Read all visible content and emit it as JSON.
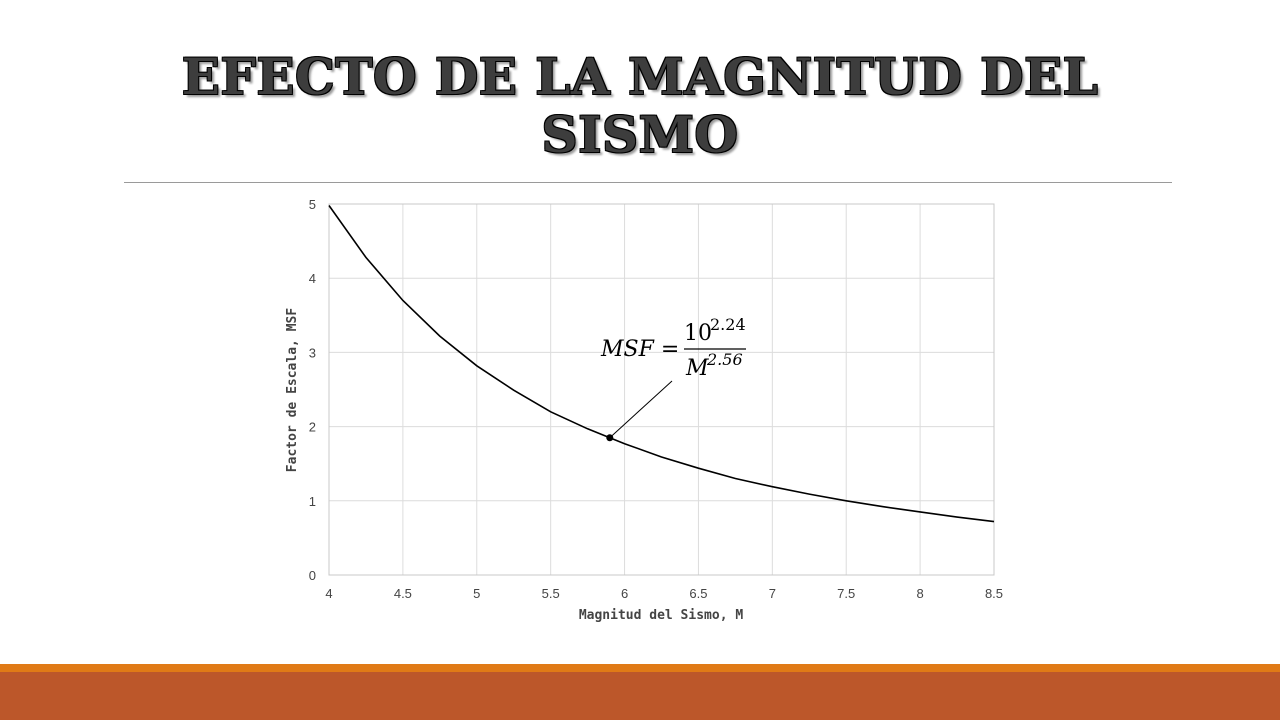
{
  "slide": {
    "title_line1": "EFECTO DE LA MAGNITUD DEL",
    "title_line2": "SISMO"
  },
  "colors": {
    "footer_top": "#e07a16",
    "footer_bottom": "#bc572a",
    "curve": "#000000",
    "grid": "#dcdcdc"
  },
  "chart_data": {
    "type": "line",
    "title": "",
    "xlabel": "Magnitud del Sismo, M",
    "ylabel": "Factor de Escala, MSF",
    "xlim": [
      4,
      8.5
    ],
    "ylim": [
      0,
      5
    ],
    "x_ticks": [
      "4",
      "4.5",
      "5",
      "5.5",
      "6",
      "6.5",
      "7",
      "7.5",
      "8",
      "8.5"
    ],
    "y_ticks": [
      "0",
      "1",
      "2",
      "3",
      "4",
      "5"
    ],
    "grid": true,
    "series": [
      {
        "x": [
          4,
          4.25,
          4.5,
          4.75,
          5,
          5.25,
          5.5,
          5.75,
          6,
          6.25,
          6.5,
          6.75,
          7,
          7.25,
          7.5,
          7.75,
          8,
          8.25,
          8.5
        ],
        "y": [
          4.98,
          4.28,
          3.7,
          3.22,
          2.82,
          2.49,
          2.2,
          1.97,
          1.77,
          1.59,
          1.44,
          1.3,
          1.19,
          1.09,
          1.0,
          0.92,
          0.85,
          0.78,
          0.72
        ]
      }
    ],
    "annotation": {
      "lhs": "MSF =",
      "numerator_base": "10",
      "numerator_exp": "2.24",
      "denominator_base": "M",
      "denominator_exp": "2.56",
      "point": {
        "x": 5.9,
        "y": 1.85
      }
    }
  }
}
